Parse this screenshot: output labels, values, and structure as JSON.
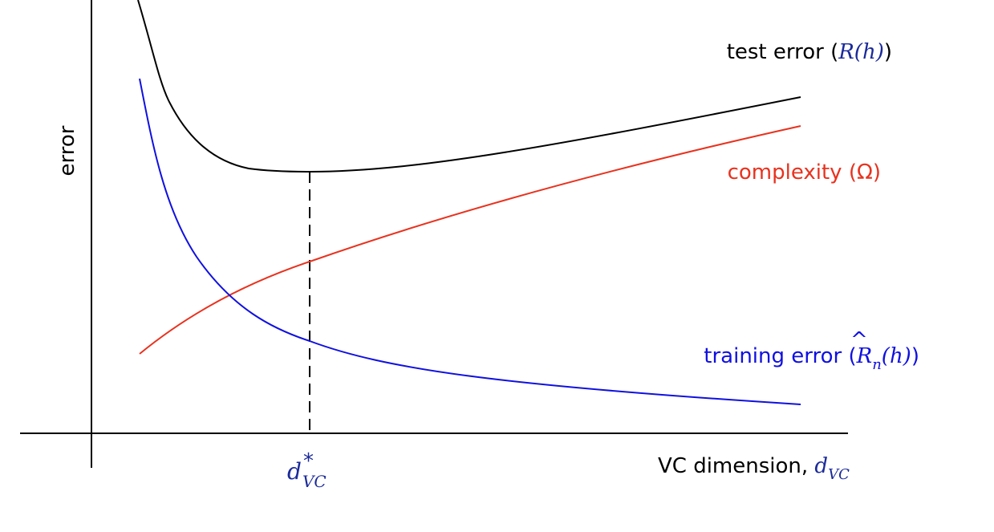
{
  "diagram": {
    "y_axis_label": "error",
    "x_axis_label": "VC dimension, ",
    "x_axis_symbol": "d",
    "x_axis_symbol_sub": "VC",
    "marker_symbol": "d",
    "marker_sup": "*",
    "marker_sub": "VC",
    "curves": {
      "test": {
        "label": "test error (",
        "symbol": "R(h)",
        "close": ")",
        "color": "#000000",
        "symbol_color": "#1a2a9a"
      },
      "complexity": {
        "label": "complexity (Ω)",
        "color": "#e8321e"
      },
      "training": {
        "label": "training error (",
        "symbol": "R",
        "hat": "^",
        "sub": "n",
        "arg": "(h)",
        "close": ")",
        "color": "#1010e0"
      }
    },
    "accent_color": "#1a2a9a"
  }
}
